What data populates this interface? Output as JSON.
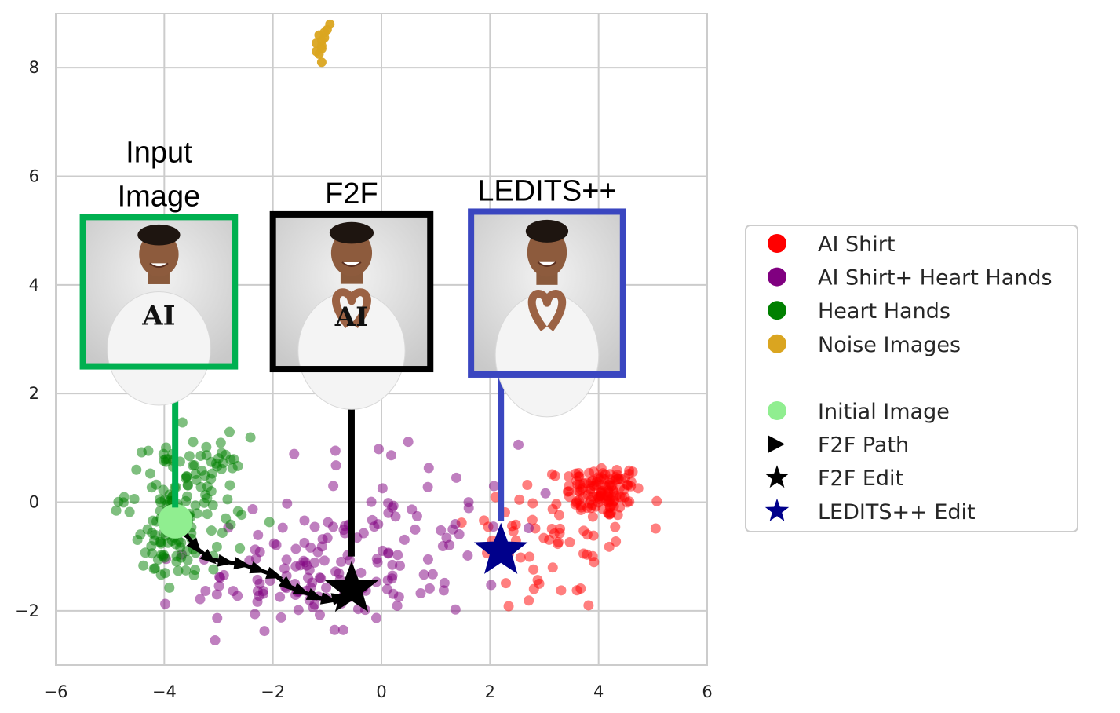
{
  "chart_data": {
    "type": "scatter",
    "title": "",
    "xlabel": "",
    "ylabel": "",
    "xlim": [
      -6,
      6
    ],
    "ylim": [
      -3,
      9
    ],
    "grid": true,
    "x_ticks": [
      -6,
      -4,
      -2,
      0,
      2,
      4,
      6
    ],
    "y_ticks": [
      -2,
      0,
      2,
      4,
      6,
      8
    ],
    "x_tick_labels": [
      "−6",
      "−4",
      "−2",
      "0",
      "2",
      "4",
      "6"
    ],
    "y_tick_labels": [
      "−2",
      "0",
      "2",
      "4",
      "6",
      "8"
    ],
    "legend_position": "right",
    "series": [
      {
        "name": "AI Shirt",
        "color": "#ff0000",
        "clusters": [
          {
            "center": [
              4.1,
              0.2
            ],
            "spread": [
              0.35,
              0.25
            ],
            "n": 110
          },
          {
            "center": [
              3.2,
              -0.6
            ],
            "spread": [
              0.8,
              0.75
            ],
            "n": 70
          }
        ]
      },
      {
        "name": "AI Shirt+ Heart Hands",
        "color": "#800080",
        "clusters": [
          {
            "center": [
              -1.5,
              -1.5
            ],
            "spread": [
              1.0,
              0.45
            ],
            "n": 90
          },
          {
            "center": [
              0.2,
              -0.5
            ],
            "spread": [
              1.2,
              0.8
            ],
            "n": 80
          }
        ]
      },
      {
        "name": "Heart Hands",
        "color": "#008000",
        "clusters": [
          {
            "center": [
              -3.6,
              0.2
            ],
            "spread": [
              0.55,
              0.5
            ],
            "n": 110
          },
          {
            "center": [
              -3.8,
              -0.9
            ],
            "spread": [
              0.4,
              0.4
            ],
            "n": 50
          }
        ]
      },
      {
        "name": "Noise Images",
        "color": "#daa520",
        "points": [
          [
            -1.1,
            8.1
          ],
          [
            -1.15,
            8.25
          ],
          [
            -1.1,
            8.35
          ],
          [
            -1.2,
            8.45
          ],
          [
            -1.1,
            8.5
          ],
          [
            -1.05,
            8.55
          ],
          [
            -1.15,
            8.6
          ],
          [
            -1.0,
            8.7
          ],
          [
            -0.95,
            8.8
          ],
          [
            -1.1,
            8.4
          ],
          [
            -1.2,
            8.3
          ],
          [
            -1.05,
            8.65
          ]
        ]
      }
    ],
    "initial_image": {
      "name": "Initial Image",
      "color": "#90ee90",
      "point": [
        -3.8,
        -0.35
      ]
    },
    "f2f_path": {
      "name": "F2F Path",
      "color": "#000000",
      "points": [
        [
          -3.8,
          -0.35
        ],
        [
          -3.6,
          -0.6
        ],
        [
          -3.4,
          -0.85
        ],
        [
          -3.15,
          -1.05
        ],
        [
          -2.85,
          -1.1
        ],
        [
          -2.55,
          -1.15
        ],
        [
          -2.25,
          -1.25
        ],
        [
          -1.95,
          -1.35
        ],
        [
          -1.7,
          -1.55
        ],
        [
          -1.45,
          -1.65
        ],
        [
          -1.2,
          -1.75
        ],
        [
          -0.95,
          -1.8
        ],
        [
          -0.75,
          -1.75
        ]
      ]
    },
    "f2f_edit": {
      "name": "F2F Edit",
      "color": "#000000",
      "point": [
        -0.55,
        -1.6
      ]
    },
    "ledits_edit": {
      "name": "LEDITS++ Edit",
      "color": "#00008b",
      "point": [
        2.2,
        -0.9
      ]
    },
    "thumbnails": [
      {
        "id": "input",
        "title_lines": [
          "Input",
          "Image"
        ],
        "border_color": "#00b050",
        "box": {
          "x": [
            -5.5,
            -2.7
          ],
          "y": [
            2.5,
            5.25
          ]
        },
        "anchor": [
          -3.8,
          -0.1
        ],
        "caption": "AI"
      },
      {
        "id": "f2f",
        "title_lines": [
          "F2F"
        ],
        "border_color": "#000000",
        "box": {
          "x": [
            -2.0,
            0.9
          ],
          "y": [
            2.45,
            5.3
          ]
        },
        "anchor": [
          -0.55,
          -1.0
        ],
        "caption": "AI"
      },
      {
        "id": "ledits",
        "title_lines": [
          "LEDITS++"
        ],
        "border_color": "#3a46c0",
        "box": {
          "x": [
            1.65,
            4.45
          ],
          "y": [
            2.35,
            5.35
          ]
        },
        "anchor": [
          2.2,
          -0.35
        ],
        "caption": ""
      }
    ],
    "legend": [
      {
        "label": "AI Shirt",
        "marker": "circle",
        "color": "#ff0000"
      },
      {
        "label": "AI Shirt+ Heart Hands",
        "marker": "circle",
        "color": "#800080"
      },
      {
        "label": "Heart Hands",
        "marker": "circle",
        "color": "#008000"
      },
      {
        "label": "Noise Images",
        "marker": "circle",
        "color": "#daa520"
      },
      {
        "label": "",
        "marker": "none",
        "color": ""
      },
      {
        "label": "Initial Image",
        "marker": "circle",
        "color": "#90ee90"
      },
      {
        "label": "F2F Path",
        "marker": "triangle-right",
        "color": "#000000"
      },
      {
        "label": "F2F Edit",
        "marker": "star",
        "color": "#000000"
      },
      {
        "label": "LEDITS++ Edit",
        "marker": "star",
        "color": "#00008b"
      }
    ]
  }
}
